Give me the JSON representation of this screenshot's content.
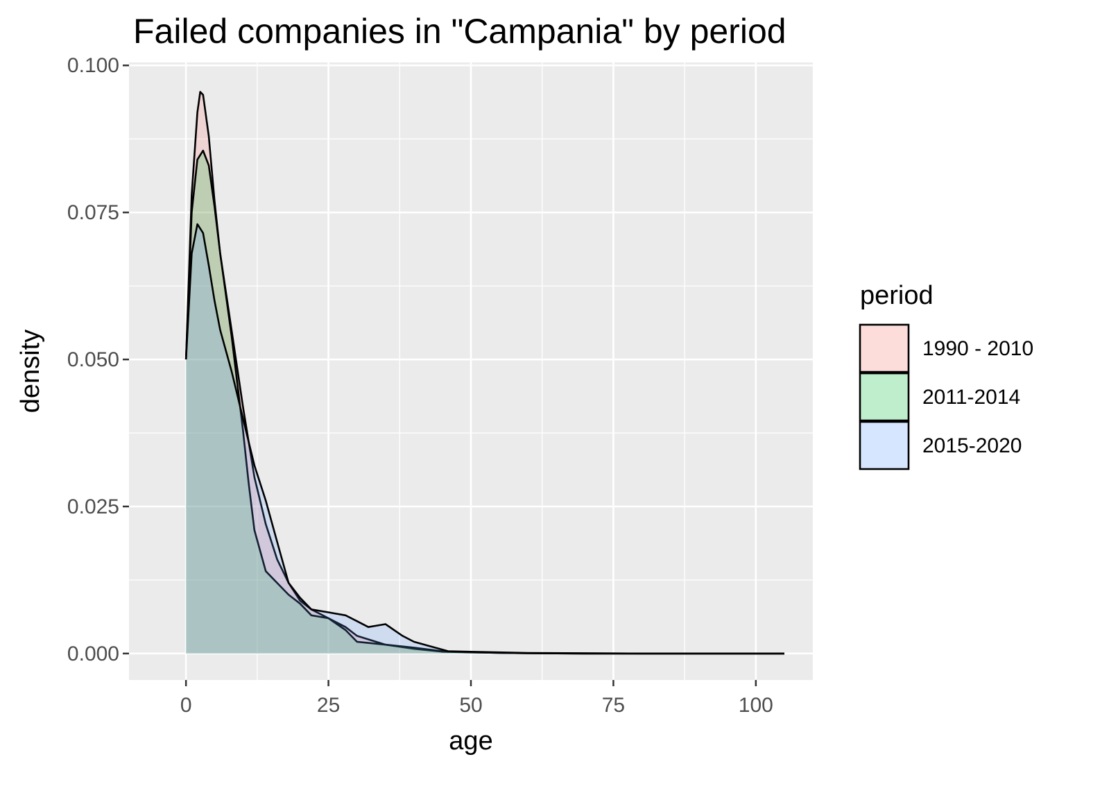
{
  "chart_data": {
    "type": "area",
    "title": "Failed companies in \"Campania\" by period",
    "xlabel": "age",
    "ylabel": "density",
    "xlim": [
      -10,
      110
    ],
    "ylim": [
      -0.0045,
      0.1005
    ],
    "x_ticks": [
      0,
      25,
      50,
      75,
      100
    ],
    "x_tick_labels": [
      "0",
      "25",
      "50",
      "75",
      "100"
    ],
    "y_ticks": [
      0.0,
      0.025,
      0.05,
      0.075,
      0.1
    ],
    "y_tick_labels": [
      "0.000",
      "0.025",
      "0.050",
      "0.075",
      "0.100"
    ],
    "grid": true,
    "legend": {
      "title": "period",
      "position": "right"
    },
    "series": [
      {
        "name": "1990 - 2010",
        "fill": "#F8766D",
        "points": [
          [
            0,
            0.05
          ],
          [
            1,
            0.078
          ],
          [
            2,
            0.092
          ],
          [
            2.5,
            0.0955
          ],
          [
            3,
            0.095
          ],
          [
            4,
            0.088
          ],
          [
            5,
            0.077
          ],
          [
            6,
            0.068
          ],
          [
            8,
            0.055
          ],
          [
            10,
            0.042
          ],
          [
            12,
            0.03
          ],
          [
            14,
            0.022
          ],
          [
            16,
            0.016
          ],
          [
            18,
            0.012
          ],
          [
            20,
            0.009
          ],
          [
            22,
            0.0075
          ],
          [
            25,
            0.006
          ],
          [
            28,
            0.0045
          ],
          [
            30,
            0.003
          ],
          [
            35,
            0.0015
          ],
          [
            40,
            0.0008
          ],
          [
            45,
            0.0003
          ],
          [
            50,
            0.0002
          ],
          [
            55,
            0.0001
          ],
          [
            60,
            5e-05
          ],
          [
            70,
            0
          ],
          [
            80,
            0
          ],
          [
            90,
            0
          ],
          [
            100,
            0
          ],
          [
            105,
            0
          ]
        ]
      },
      {
        "name": "2011-2014",
        "fill": "#00BA38",
        "points": [
          [
            0,
            0.05
          ],
          [
            1,
            0.075
          ],
          [
            2,
            0.084
          ],
          [
            3,
            0.0855
          ],
          [
            4,
            0.083
          ],
          [
            5,
            0.076
          ],
          [
            6,
            0.068
          ],
          [
            8,
            0.054
          ],
          [
            10,
            0.038
          ],
          [
            11,
            0.029
          ],
          [
            12,
            0.021
          ],
          [
            14,
            0.014
          ],
          [
            16,
            0.012
          ],
          [
            18,
            0.01
          ],
          [
            20,
            0.0085
          ],
          [
            22,
            0.0065
          ],
          [
            25,
            0.006
          ],
          [
            28,
            0.004
          ],
          [
            30,
            0.002
          ],
          [
            35,
            0.0015
          ],
          [
            40,
            0.001
          ],
          [
            45,
            0.0004
          ],
          [
            50,
            0.0002
          ],
          [
            55,
            0.0001
          ],
          [
            60,
            5e-05
          ],
          [
            70,
            0
          ],
          [
            80,
            0
          ],
          [
            90,
            0
          ],
          [
            100,
            0
          ],
          [
            105,
            0
          ]
        ]
      },
      {
        "name": "2015-2020",
        "fill": "#619CFF",
        "points": [
          [
            0,
            0.05
          ],
          [
            1,
            0.068
          ],
          [
            2,
            0.073
          ],
          [
            3,
            0.0715
          ],
          [
            4,
            0.066
          ],
          [
            5,
            0.06
          ],
          [
            6,
            0.055
          ],
          [
            8,
            0.048
          ],
          [
            10,
            0.04
          ],
          [
            12,
            0.032
          ],
          [
            14,
            0.026
          ],
          [
            16,
            0.019
          ],
          [
            18,
            0.012
          ],
          [
            20,
            0.0095
          ],
          [
            22,
            0.0075
          ],
          [
            25,
            0.007
          ],
          [
            28,
            0.0065
          ],
          [
            30,
            0.0055
          ],
          [
            32,
            0.0045
          ],
          [
            35,
            0.005
          ],
          [
            38,
            0.003
          ],
          [
            40,
            0.002
          ],
          [
            43,
            0.0012
          ],
          [
            46,
            0.0004
          ],
          [
            50,
            0.0003
          ],
          [
            55,
            0.0002
          ],
          [
            60,
            0.0001
          ],
          [
            70,
            5e-05
          ],
          [
            80,
            0
          ],
          [
            90,
            0
          ],
          [
            100,
            0
          ],
          [
            105,
            0
          ]
        ]
      }
    ]
  }
}
